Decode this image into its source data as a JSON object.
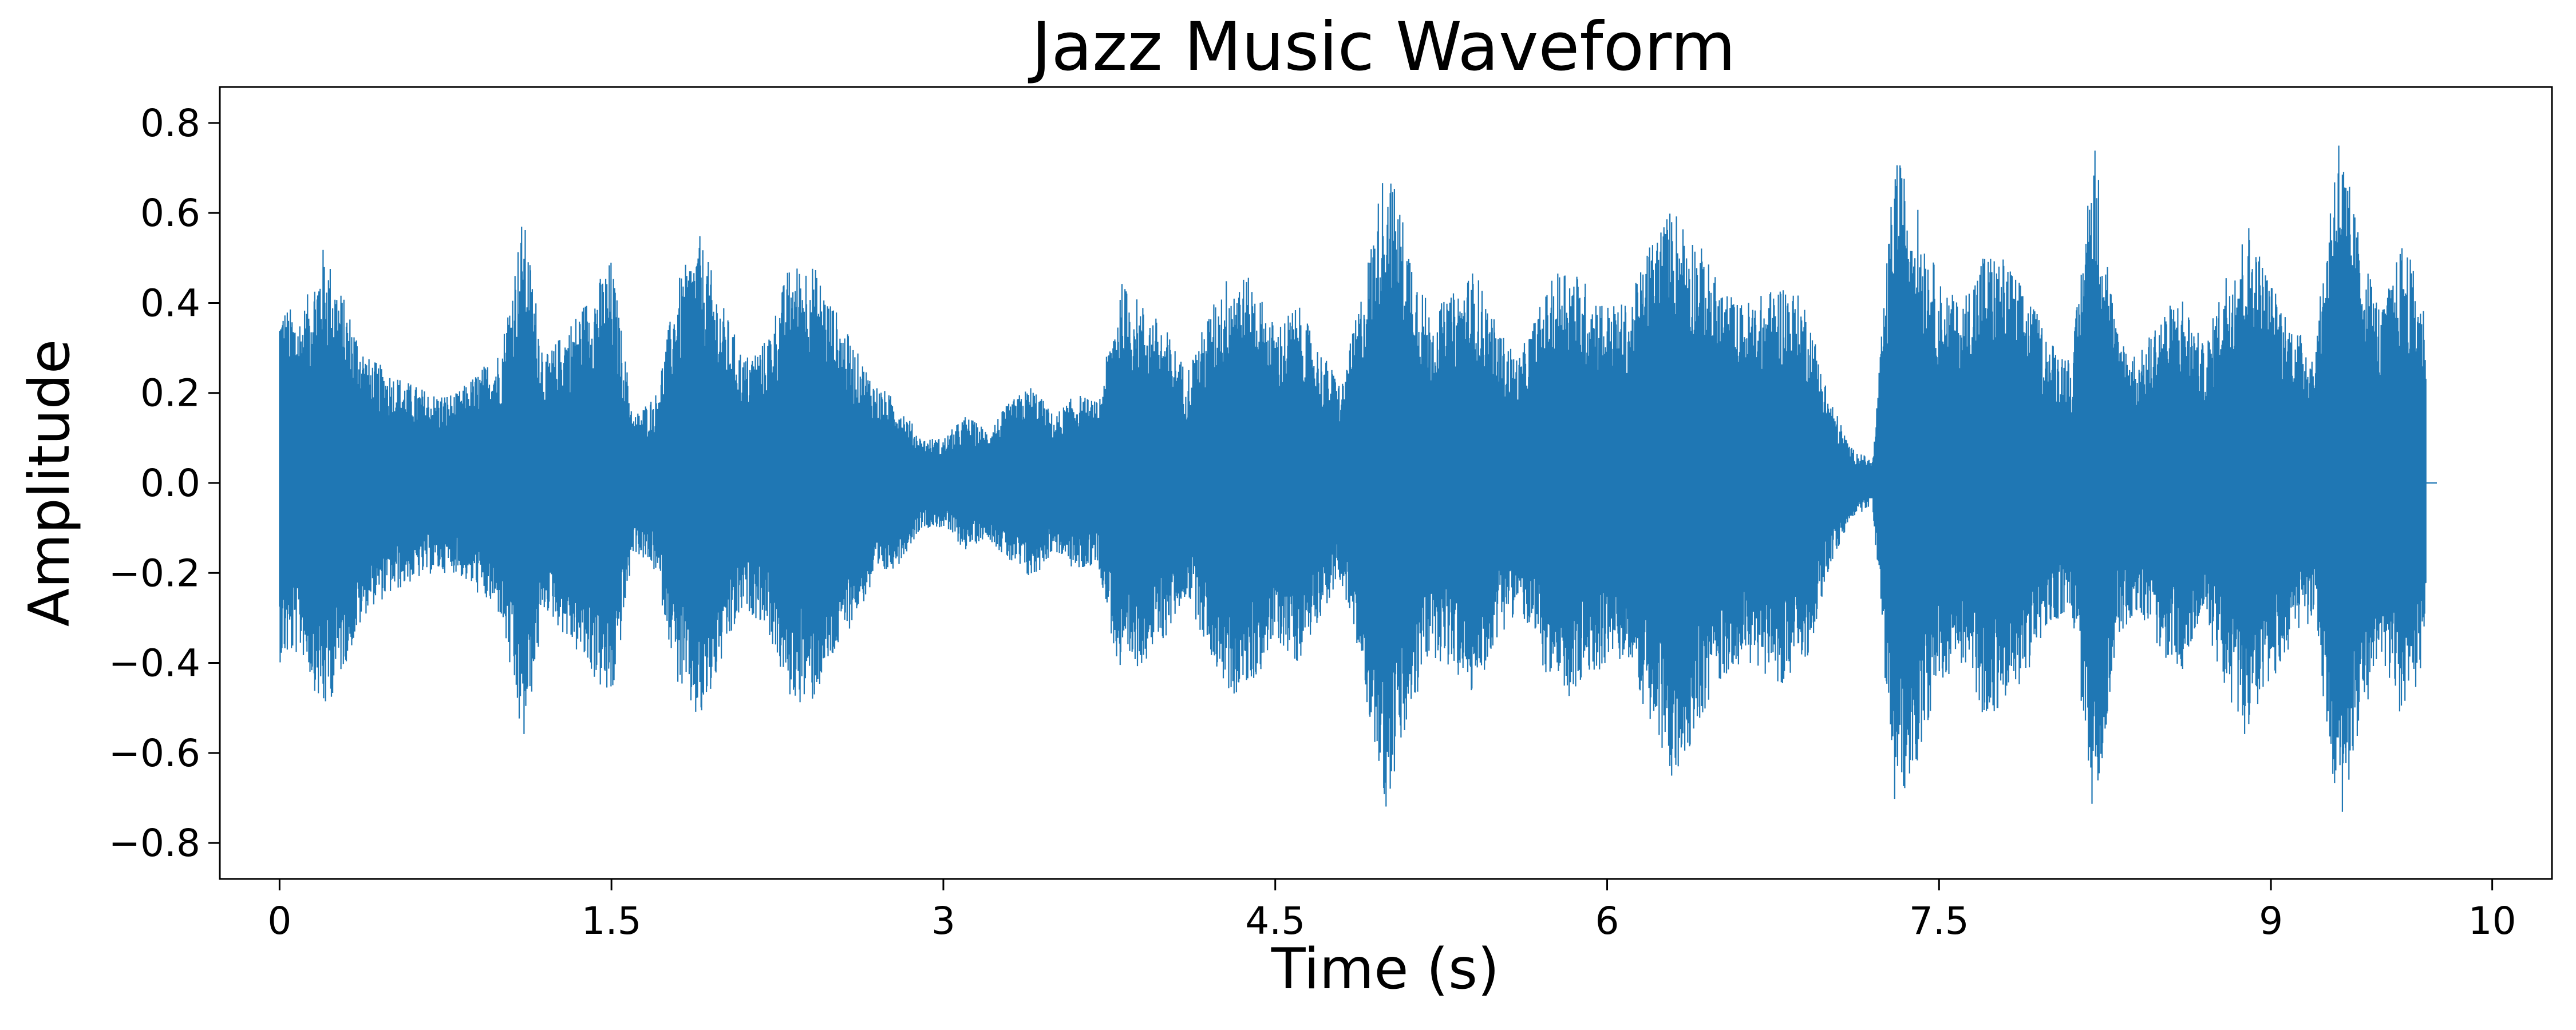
{
  "chart_data": {
    "type": "line",
    "title": "Jazz Music Waveform",
    "xlabel": "Time (s)",
    "ylabel": "Amplitude",
    "xlim": [
      -0.27,
      10.27
    ],
    "ylim": [
      -0.88,
      0.88
    ],
    "xticks": [
      {
        "value": 0,
        "label": "0"
      },
      {
        "value": 1.5,
        "label": "1.5"
      },
      {
        "value": 3,
        "label": "3"
      },
      {
        "value": 4.5,
        "label": "4.5"
      },
      {
        "value": 6,
        "label": "6"
      },
      {
        "value": 7.5,
        "label": "7.5"
      },
      {
        "value": 9,
        "label": "9"
      },
      {
        "value": 10,
        "label": "10"
      }
    ],
    "yticks": [
      {
        "value": 0.8,
        "label": "0.8"
      },
      {
        "value": 0.6,
        "label": "0.6"
      },
      {
        "value": 0.4,
        "label": "0.4"
      },
      {
        "value": 0.2,
        "label": "0.2"
      },
      {
        "value": 0.0,
        "label": "0.0"
      },
      {
        "value": -0.2,
        "label": "−0.2"
      },
      {
        "value": -0.4,
        "label": "−0.4"
      },
      {
        "value": -0.6,
        "label": "−0.6"
      },
      {
        "value": -0.8,
        "label": "−0.8"
      }
    ],
    "grid": false,
    "series_color": "#1f77b4",
    "envelope": {
      "time": [
        0.0,
        0.1,
        0.2,
        0.3,
        0.4,
        0.5,
        0.6,
        0.7,
        0.8,
        0.9,
        1.0,
        1.1,
        1.2,
        1.3,
        1.4,
        1.5,
        1.6,
        1.7,
        1.8,
        1.9,
        2.0,
        2.1,
        2.2,
        2.3,
        2.4,
        2.5,
        2.6,
        2.7,
        2.8,
        2.9,
        3.0,
        3.1,
        3.2,
        3.3,
        3.4,
        3.5,
        3.6,
        3.7,
        3.8,
        3.9,
        4.0,
        4.1,
        4.2,
        4.3,
        4.4,
        4.5,
        4.6,
        4.7,
        4.8,
        4.9,
        5.0,
        5.1,
        5.2,
        5.3,
        5.4,
        5.5,
        5.6,
        5.7,
        5.8,
        5.9,
        6.0,
        6.1,
        6.2,
        6.3,
        6.4,
        6.5,
        6.6,
        6.7,
        6.8,
        6.9,
        7.0,
        7.1,
        7.2,
        7.3,
        7.4,
        7.5,
        7.6,
        7.7,
        7.8,
        7.9,
        8.0,
        8.1,
        8.2,
        8.3,
        8.4,
        8.5,
        8.6,
        8.7,
        8.8,
        8.9,
        9.0,
        9.1,
        9.2,
        9.3,
        9.4,
        9.5,
        9.6,
        9.7,
        9.75
      ],
      "max": [
        0.4,
        0.38,
        0.53,
        0.4,
        0.28,
        0.25,
        0.22,
        0.2,
        0.2,
        0.25,
        0.3,
        0.6,
        0.28,
        0.35,
        0.42,
        0.5,
        0.15,
        0.2,
        0.45,
        0.55,
        0.4,
        0.28,
        0.32,
        0.48,
        0.5,
        0.4,
        0.3,
        0.22,
        0.18,
        0.1,
        0.1,
        0.15,
        0.12,
        0.18,
        0.22,
        0.15,
        0.2,
        0.18,
        0.45,
        0.4,
        0.35,
        0.25,
        0.38,
        0.48,
        0.45,
        0.35,
        0.4,
        0.3,
        0.22,
        0.45,
        0.73,
        0.55,
        0.38,
        0.42,
        0.48,
        0.35,
        0.28,
        0.4,
        0.5,
        0.45,
        0.4,
        0.4,
        0.55,
        0.62,
        0.55,
        0.45,
        0.4,
        0.42,
        0.45,
        0.4,
        0.2,
        0.08,
        0.05,
        0.74,
        0.62,
        0.45,
        0.4,
        0.52,
        0.5,
        0.42,
        0.32,
        0.28,
        0.78,
        0.35,
        0.28,
        0.38,
        0.42,
        0.3,
        0.48,
        0.58,
        0.45,
        0.35,
        0.3,
        0.8,
        0.55,
        0.38,
        0.55,
        0.38,
        0.0
      ],
      "min": [
        -0.4,
        -0.38,
        -0.52,
        -0.4,
        -0.28,
        -0.25,
        -0.22,
        -0.2,
        -0.2,
        -0.25,
        -0.3,
        -0.6,
        -0.28,
        -0.35,
        -0.42,
        -0.5,
        -0.15,
        -0.2,
        -0.45,
        -0.55,
        -0.4,
        -0.28,
        -0.32,
        -0.48,
        -0.5,
        -0.4,
        -0.3,
        -0.22,
        -0.18,
        -0.1,
        -0.1,
        -0.15,
        -0.12,
        -0.18,
        -0.22,
        -0.15,
        -0.2,
        -0.18,
        -0.45,
        -0.4,
        -0.35,
        -0.25,
        -0.38,
        -0.48,
        -0.45,
        -0.35,
        -0.4,
        -0.3,
        -0.22,
        -0.45,
        -0.73,
        -0.55,
        -0.38,
        -0.42,
        -0.48,
        -0.35,
        -0.28,
        -0.4,
        -0.5,
        -0.45,
        -0.4,
        -0.4,
        -0.55,
        -0.68,
        -0.55,
        -0.45,
        -0.4,
        -0.42,
        -0.45,
        -0.4,
        -0.2,
        -0.08,
        -0.05,
        -0.74,
        -0.62,
        -0.45,
        -0.4,
        -0.52,
        -0.5,
        -0.42,
        -0.32,
        -0.28,
        -0.78,
        -0.35,
        -0.28,
        -0.38,
        -0.42,
        -0.3,
        -0.48,
        -0.58,
        -0.45,
        -0.35,
        -0.3,
        -0.8,
        -0.55,
        -0.38,
        -0.55,
        -0.38,
        0.0
      ]
    }
  }
}
